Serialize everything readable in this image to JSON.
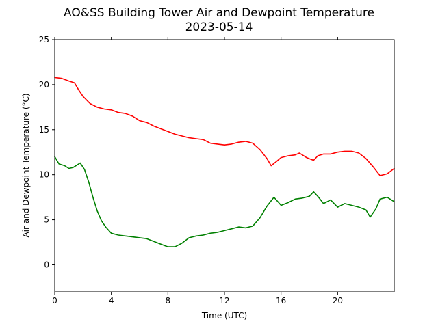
{
  "chart_data": {
    "type": "line",
    "title": "AO&SS Building Tower Air and Dewpoint Temperature",
    "subtitle": "2023-05-14",
    "xlabel": "Time (UTC)",
    "ylabel": "Air and Dewpoint Temperature (°C)",
    "xlim": [
      0,
      24
    ],
    "ylim": [
      -3,
      25
    ],
    "xticks": [
      0,
      4,
      8,
      12,
      16,
      20
    ],
    "yticks": [
      0,
      5,
      10,
      15,
      20,
      25
    ],
    "grid": false,
    "series": [
      {
        "color": "#ff0000",
        "x": [
          0,
          0.5,
          1,
          1.4,
          1.7,
          2,
          2.5,
          3,
          3.5,
          4,
          4.5,
          5,
          5.5,
          6,
          6.5,
          7,
          7.5,
          8,
          8.5,
          9,
          9.5,
          10,
          10.5,
          11,
          11.5,
          12,
          12.5,
          13,
          13.5,
          14,
          14.5,
          15,
          15.3,
          15.7,
          16,
          16.5,
          17,
          17.3,
          17.8,
          18.3,
          18.6,
          19,
          19.5,
          20,
          20.5,
          21,
          21.5,
          22,
          22.5,
          23,
          23.5,
          24
        ],
        "values": [
          20.8,
          20.7,
          20.4,
          20.2,
          19.4,
          18.7,
          17.9,
          17.5,
          17.3,
          17.2,
          16.9,
          16.8,
          16.5,
          16.0,
          15.8,
          15.4,
          15.1,
          14.8,
          14.5,
          14.3,
          14.1,
          14.0,
          13.9,
          13.5,
          13.4,
          13.3,
          13.4,
          13.6,
          13.7,
          13.5,
          12.8,
          11.8,
          11.0,
          11.5,
          11.9,
          12.1,
          12.2,
          12.4,
          11.9,
          11.6,
          12.1,
          12.3,
          12.3,
          12.5,
          12.6,
          12.6,
          12.4,
          11.8,
          10.9,
          9.9,
          10.1,
          10.7
        ]
      },
      {
        "color": "#008000",
        "x": [
          0,
          0.3,
          0.7,
          1,
          1.3,
          1.6,
          1.8,
          2.1,
          2.4,
          2.7,
          3,
          3.3,
          3.6,
          4,
          4.5,
          5,
          5.5,
          6,
          6.5,
          7,
          7.5,
          8,
          8.5,
          9,
          9.5,
          10,
          10.5,
          11,
          11.5,
          12,
          12.5,
          13,
          13.5,
          14,
          14.5,
          15,
          15.5,
          16,
          16.5,
          17,
          17.5,
          18,
          18.3,
          18.6,
          19,
          19.5,
          20,
          20.5,
          21,
          21.5,
          22,
          22.3,
          22.7,
          23,
          23.5,
          24
        ],
        "values": [
          12.0,
          11.2,
          11.0,
          10.7,
          10.8,
          11.1,
          11.3,
          10.6,
          9.2,
          7.5,
          6.0,
          4.9,
          4.2,
          3.5,
          3.3,
          3.2,
          3.1,
          3.0,
          2.9,
          2.6,
          2.3,
          2.0,
          2.0,
          2.4,
          3.0,
          3.2,
          3.3,
          3.5,
          3.6,
          3.8,
          4.0,
          4.2,
          4.1,
          4.3,
          5.2,
          6.5,
          7.5,
          6.6,
          6.9,
          7.3,
          7.4,
          7.6,
          8.1,
          7.6,
          6.8,
          7.2,
          6.4,
          6.8,
          6.6,
          6.4,
          6.1,
          5.3,
          6.2,
          7.3,
          7.5,
          7.0
        ]
      }
    ]
  }
}
